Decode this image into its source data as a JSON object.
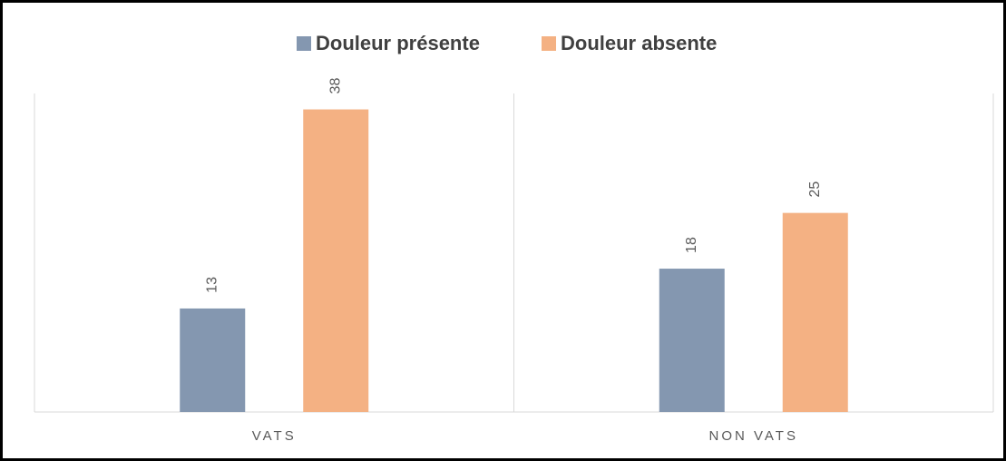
{
  "chart_data": {
    "type": "bar",
    "categories": [
      "VATS",
      "NON VATS"
    ],
    "series": [
      {
        "name": "Douleur présente",
        "color": "#8497b0",
        "values": [
          13,
          18
        ]
      },
      {
        "name": "Douleur absente",
        "color": "#f4b183",
        "values": [
          38,
          25
        ]
      }
    ],
    "ylim": [
      0,
      40
    ],
    "legend": "top"
  }
}
